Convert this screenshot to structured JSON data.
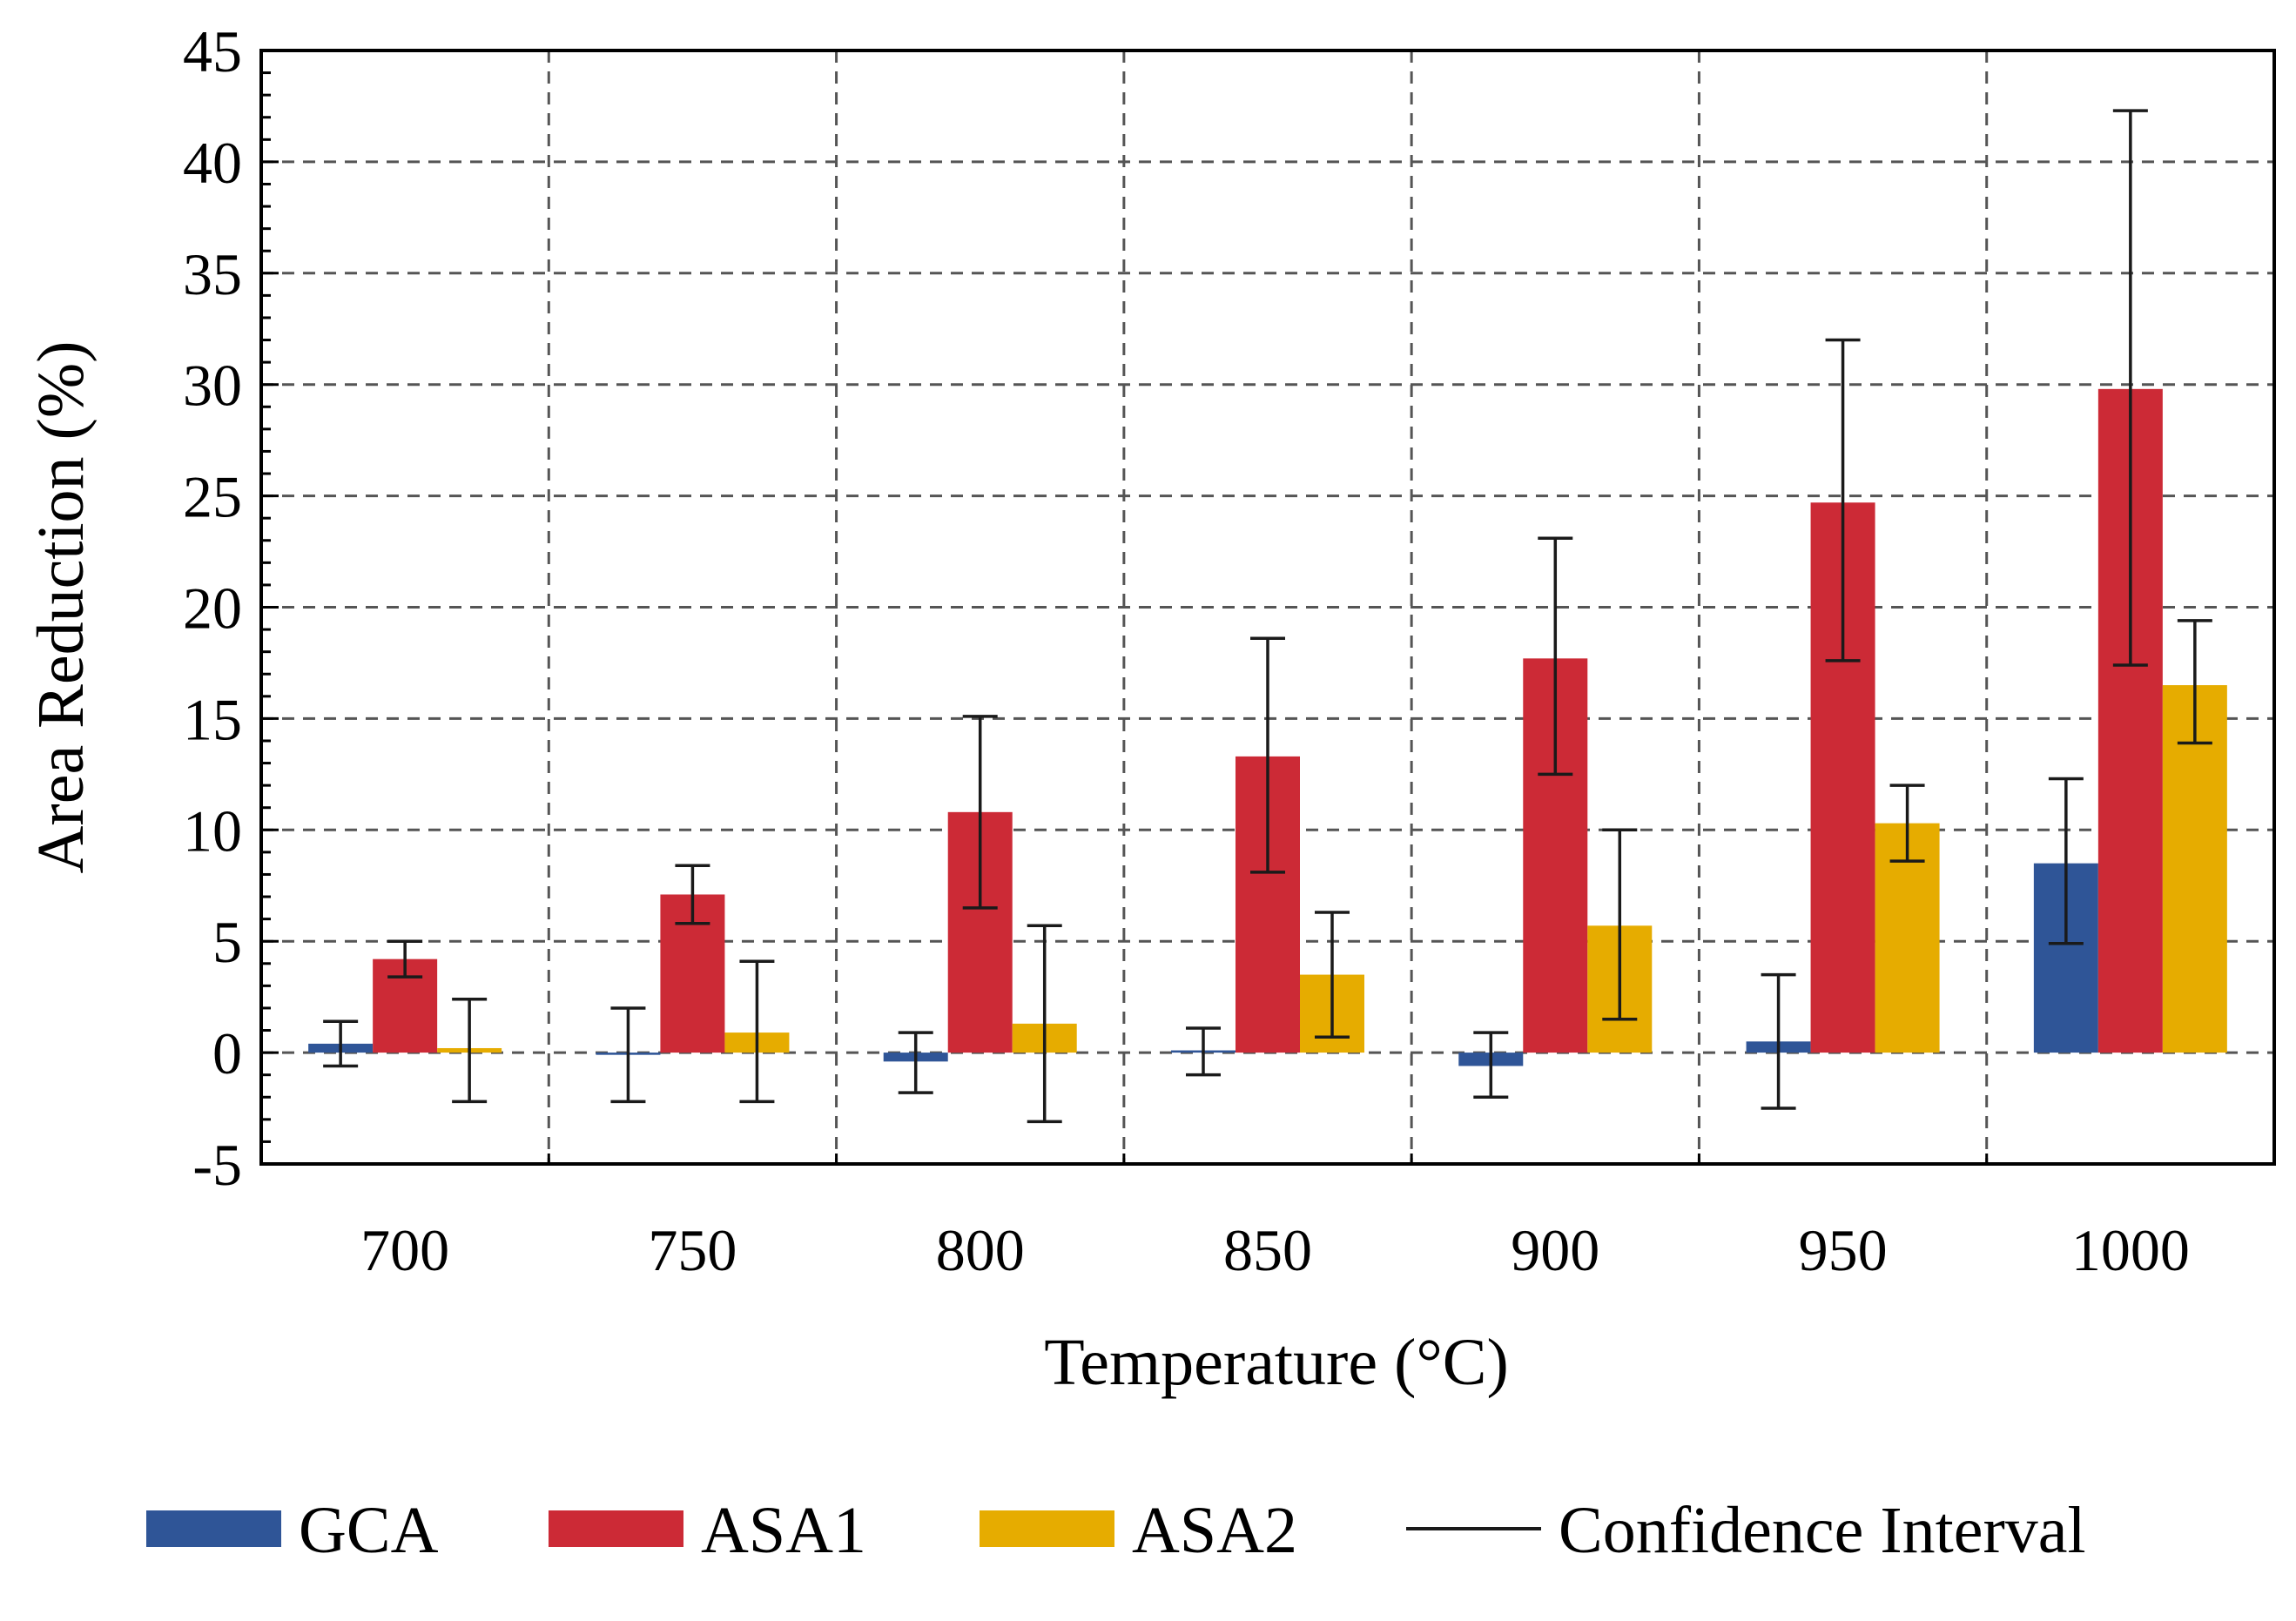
{
  "chart_data": {
    "type": "bar",
    "title": "",
    "xlabel": "Temperature (°C)",
    "ylabel": "Area Reduction (%)",
    "ylim": [
      -5,
      45
    ],
    "yticks": [
      "-5",
      "0",
      "5",
      "10",
      "15",
      "20",
      "25",
      "30",
      "35",
      "40",
      "45"
    ],
    "ytick_values": [
      -5,
      0,
      5,
      10,
      15,
      20,
      25,
      30,
      35,
      40,
      45
    ],
    "categories": [
      "700",
      "750",
      "800",
      "850",
      "900",
      "950",
      "1000"
    ],
    "grid": true,
    "legend_position": "bottom",
    "series": [
      {
        "name": "GCA",
        "color": "#2f5597",
        "values": [
          0.4,
          -0.1,
          -0.4,
          0.1,
          -0.6,
          0.5,
          8.5
        ],
        "error_low": [
          -0.6,
          -2.2,
          -1.8,
          -1.0,
          -2.0,
          -2.5,
          4.9
        ],
        "error_high": [
          1.4,
          2.0,
          0.9,
          1.1,
          0.9,
          3.5,
          12.3
        ]
      },
      {
        "name": "ASA1",
        "color": "#cc2a36",
        "values": [
          4.2,
          7.1,
          10.8,
          13.3,
          17.7,
          24.7,
          29.8
        ],
        "error_low": [
          3.4,
          5.8,
          6.5,
          8.1,
          12.5,
          17.6,
          17.4
        ],
        "error_high": [
          5.0,
          8.4,
          15.1,
          18.6,
          23.1,
          32.0,
          42.3
        ]
      },
      {
        "name": "ASA2",
        "color": "#e6ac00",
        "values": [
          0.2,
          0.9,
          1.3,
          3.5,
          5.7,
          10.3,
          16.5
        ],
        "error_low": [
          -2.2,
          -2.2,
          -3.1,
          0.7,
          1.5,
          8.6,
          13.9
        ],
        "error_high": [
          2.4,
          4.1,
          5.7,
          6.3,
          10.0,
          12.0,
          19.4
        ]
      }
    ],
    "legend": [
      {
        "label": "GCA",
        "kind": "patch",
        "color": "#2f5597"
      },
      {
        "label": "ASA1",
        "kind": "patch",
        "color": "#cc2a36"
      },
      {
        "label": "ASA2",
        "kind": "patch",
        "color": "#e6ac00"
      },
      {
        "label": "Confidence Interval",
        "kind": "line",
        "color": "#1a1a1a"
      }
    ]
  }
}
